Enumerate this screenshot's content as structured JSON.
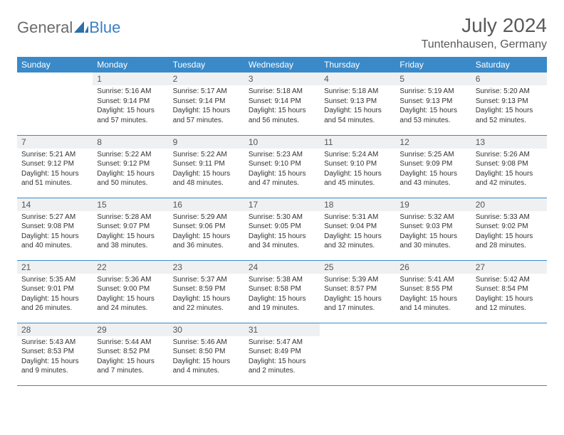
{
  "brand": {
    "part1": "General",
    "part2": "Blue"
  },
  "title": "July 2024",
  "location": "Tuntenhausen, Germany",
  "colors": {
    "header_bg": "#3a8ac9",
    "header_text": "#ffffff",
    "daynum_bg": "#eef0f2",
    "text": "#333333",
    "rule": "#3a8ac9",
    "logo_gray": "#6b6b6b",
    "logo_blue": "#3a7fc4"
  },
  "weekdays": [
    "Sunday",
    "Monday",
    "Tuesday",
    "Wednesday",
    "Thursday",
    "Friday",
    "Saturday"
  ],
  "weeks": [
    [
      {
        "day": "",
        "sunrise": "",
        "sunset": "",
        "daylight": ""
      },
      {
        "day": "1",
        "sunrise": "Sunrise: 5:16 AM",
        "sunset": "Sunset: 9:14 PM",
        "daylight": "Daylight: 15 hours and 57 minutes."
      },
      {
        "day": "2",
        "sunrise": "Sunrise: 5:17 AM",
        "sunset": "Sunset: 9:14 PM",
        "daylight": "Daylight: 15 hours and 57 minutes."
      },
      {
        "day": "3",
        "sunrise": "Sunrise: 5:18 AM",
        "sunset": "Sunset: 9:14 PM",
        "daylight": "Daylight: 15 hours and 56 minutes."
      },
      {
        "day": "4",
        "sunrise": "Sunrise: 5:18 AM",
        "sunset": "Sunset: 9:13 PM",
        "daylight": "Daylight: 15 hours and 54 minutes."
      },
      {
        "day": "5",
        "sunrise": "Sunrise: 5:19 AM",
        "sunset": "Sunset: 9:13 PM",
        "daylight": "Daylight: 15 hours and 53 minutes."
      },
      {
        "day": "6",
        "sunrise": "Sunrise: 5:20 AM",
        "sunset": "Sunset: 9:13 PM",
        "daylight": "Daylight: 15 hours and 52 minutes."
      }
    ],
    [
      {
        "day": "7",
        "sunrise": "Sunrise: 5:21 AM",
        "sunset": "Sunset: 9:12 PM",
        "daylight": "Daylight: 15 hours and 51 minutes."
      },
      {
        "day": "8",
        "sunrise": "Sunrise: 5:22 AM",
        "sunset": "Sunset: 9:12 PM",
        "daylight": "Daylight: 15 hours and 50 minutes."
      },
      {
        "day": "9",
        "sunrise": "Sunrise: 5:22 AM",
        "sunset": "Sunset: 9:11 PM",
        "daylight": "Daylight: 15 hours and 48 minutes."
      },
      {
        "day": "10",
        "sunrise": "Sunrise: 5:23 AM",
        "sunset": "Sunset: 9:10 PM",
        "daylight": "Daylight: 15 hours and 47 minutes."
      },
      {
        "day": "11",
        "sunrise": "Sunrise: 5:24 AM",
        "sunset": "Sunset: 9:10 PM",
        "daylight": "Daylight: 15 hours and 45 minutes."
      },
      {
        "day": "12",
        "sunrise": "Sunrise: 5:25 AM",
        "sunset": "Sunset: 9:09 PM",
        "daylight": "Daylight: 15 hours and 43 minutes."
      },
      {
        "day": "13",
        "sunrise": "Sunrise: 5:26 AM",
        "sunset": "Sunset: 9:08 PM",
        "daylight": "Daylight: 15 hours and 42 minutes."
      }
    ],
    [
      {
        "day": "14",
        "sunrise": "Sunrise: 5:27 AM",
        "sunset": "Sunset: 9:08 PM",
        "daylight": "Daylight: 15 hours and 40 minutes."
      },
      {
        "day": "15",
        "sunrise": "Sunrise: 5:28 AM",
        "sunset": "Sunset: 9:07 PM",
        "daylight": "Daylight: 15 hours and 38 minutes."
      },
      {
        "day": "16",
        "sunrise": "Sunrise: 5:29 AM",
        "sunset": "Sunset: 9:06 PM",
        "daylight": "Daylight: 15 hours and 36 minutes."
      },
      {
        "day": "17",
        "sunrise": "Sunrise: 5:30 AM",
        "sunset": "Sunset: 9:05 PM",
        "daylight": "Daylight: 15 hours and 34 minutes."
      },
      {
        "day": "18",
        "sunrise": "Sunrise: 5:31 AM",
        "sunset": "Sunset: 9:04 PM",
        "daylight": "Daylight: 15 hours and 32 minutes."
      },
      {
        "day": "19",
        "sunrise": "Sunrise: 5:32 AM",
        "sunset": "Sunset: 9:03 PM",
        "daylight": "Daylight: 15 hours and 30 minutes."
      },
      {
        "day": "20",
        "sunrise": "Sunrise: 5:33 AM",
        "sunset": "Sunset: 9:02 PM",
        "daylight": "Daylight: 15 hours and 28 minutes."
      }
    ],
    [
      {
        "day": "21",
        "sunrise": "Sunrise: 5:35 AM",
        "sunset": "Sunset: 9:01 PM",
        "daylight": "Daylight: 15 hours and 26 minutes."
      },
      {
        "day": "22",
        "sunrise": "Sunrise: 5:36 AM",
        "sunset": "Sunset: 9:00 PM",
        "daylight": "Daylight: 15 hours and 24 minutes."
      },
      {
        "day": "23",
        "sunrise": "Sunrise: 5:37 AM",
        "sunset": "Sunset: 8:59 PM",
        "daylight": "Daylight: 15 hours and 22 minutes."
      },
      {
        "day": "24",
        "sunrise": "Sunrise: 5:38 AM",
        "sunset": "Sunset: 8:58 PM",
        "daylight": "Daylight: 15 hours and 19 minutes."
      },
      {
        "day": "25",
        "sunrise": "Sunrise: 5:39 AM",
        "sunset": "Sunset: 8:57 PM",
        "daylight": "Daylight: 15 hours and 17 minutes."
      },
      {
        "day": "26",
        "sunrise": "Sunrise: 5:41 AM",
        "sunset": "Sunset: 8:55 PM",
        "daylight": "Daylight: 15 hours and 14 minutes."
      },
      {
        "day": "27",
        "sunrise": "Sunrise: 5:42 AM",
        "sunset": "Sunset: 8:54 PM",
        "daylight": "Daylight: 15 hours and 12 minutes."
      }
    ],
    [
      {
        "day": "28",
        "sunrise": "Sunrise: 5:43 AM",
        "sunset": "Sunset: 8:53 PM",
        "daylight": "Daylight: 15 hours and 9 minutes."
      },
      {
        "day": "29",
        "sunrise": "Sunrise: 5:44 AM",
        "sunset": "Sunset: 8:52 PM",
        "daylight": "Daylight: 15 hours and 7 minutes."
      },
      {
        "day": "30",
        "sunrise": "Sunrise: 5:46 AM",
        "sunset": "Sunset: 8:50 PM",
        "daylight": "Daylight: 15 hours and 4 minutes."
      },
      {
        "day": "31",
        "sunrise": "Sunrise: 5:47 AM",
        "sunset": "Sunset: 8:49 PM",
        "daylight": "Daylight: 15 hours and 2 minutes."
      },
      {
        "day": "",
        "sunrise": "",
        "sunset": "",
        "daylight": ""
      },
      {
        "day": "",
        "sunrise": "",
        "sunset": "",
        "daylight": ""
      },
      {
        "day": "",
        "sunrise": "",
        "sunset": "",
        "daylight": ""
      }
    ]
  ]
}
